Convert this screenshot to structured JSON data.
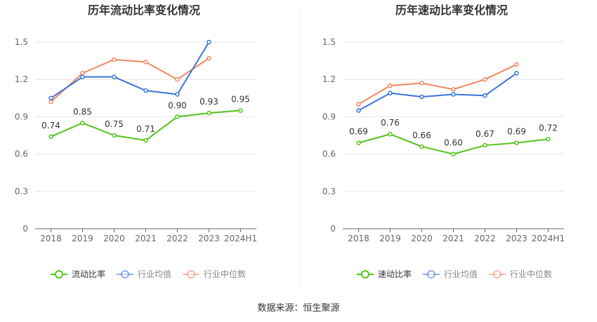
{
  "colors": {
    "primary": "#52c41a",
    "industry_avg": "#3a75db",
    "industry_median": "#f0875f",
    "grid": "#e6e6e6",
    "axis": "#666666",
    "tick_text": "#666666",
    "value_text": "#333333",
    "title": "#333333"
  },
  "legend_labels": [
    "流动比率",
    "行业均值",
    "行业中位数"
  ],
  "source_text": "数据来源：恒生聚源",
  "chart_data": [
    {
      "type": "line",
      "title": "历年流动比率变化情况",
      "categories": [
        "2018",
        "2019",
        "2020",
        "2021",
        "2022",
        "2023",
        "2024H1"
      ],
      "ylim": [
        0,
        1.5
      ],
      "yticks": [
        0,
        0.3,
        0.6,
        0.9,
        1.2,
        1.5
      ],
      "ytick_labels": [
        "0",
        "0.3",
        "0.6",
        "0.9",
        "1.2",
        "1.5"
      ],
      "grid": true,
      "legend_position": "bottom",
      "series": [
        {
          "name": "流动比率",
          "values": [
            0.74,
            0.85,
            0.75,
            0.71,
            0.9,
            0.93,
            0.95
          ],
          "labels": [
            "0.74",
            "0.85",
            "0.75",
            "0.71",
            "0.90",
            "0.93",
            "0.95"
          ]
        },
        {
          "name": "行业均值",
          "values": [
            1.05,
            1.22,
            1.22,
            1.11,
            1.08,
            1.5,
            null
          ]
        },
        {
          "name": "行业中位数",
          "values": [
            1.02,
            1.25,
            1.36,
            1.34,
            1.2,
            1.37,
            null
          ]
        }
      ]
    },
    {
      "type": "line",
      "title": "历年速动比率变化情况",
      "categories": [
        "2018",
        "2019",
        "2020",
        "2021",
        "2022",
        "2023",
        "2024H1"
      ],
      "ylim": [
        0,
        1.5
      ],
      "yticks": [
        0,
        0.3,
        0.6,
        0.9,
        1.2,
        1.5
      ],
      "ytick_labels": [
        "0",
        "0.3",
        "0.6",
        "0.9",
        "1.2",
        "1.5"
      ],
      "grid": true,
      "legend_position": "bottom",
      "series": [
        {
          "name": "速动比率",
          "values": [
            0.69,
            0.76,
            0.66,
            0.6,
            0.67,
            0.69,
            0.72
          ],
          "labels": [
            "0.69",
            "0.76",
            "0.66",
            "0.60",
            "0.67",
            "0.69",
            "0.72"
          ]
        },
        {
          "name": "行业均值",
          "values": [
            0.95,
            1.09,
            1.06,
            1.08,
            1.07,
            1.25,
            null
          ]
        },
        {
          "name": "行业中位数",
          "values": [
            1.0,
            1.15,
            1.17,
            1.12,
            1.2,
            1.32,
            null
          ]
        }
      ]
    }
  ]
}
